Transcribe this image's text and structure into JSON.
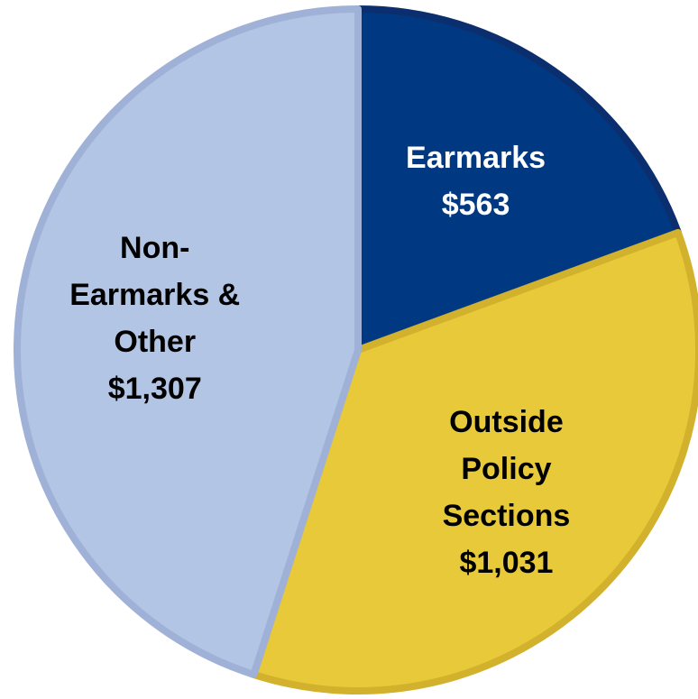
{
  "chart_data": {
    "type": "pie",
    "categories": [
      "Earmarks",
      "Outside Policy Sections",
      "Non-Earmarks & Other"
    ],
    "values": [
      563,
      1031,
      1307
    ],
    "value_labels": [
      "$563",
      "$1,031",
      "$1,307"
    ],
    "colors": [
      "#003882",
      "#e8c93a",
      "#b3c5e5"
    ],
    "label_colors": [
      "#ffffff",
      "#000000",
      "#000000"
    ]
  }
}
